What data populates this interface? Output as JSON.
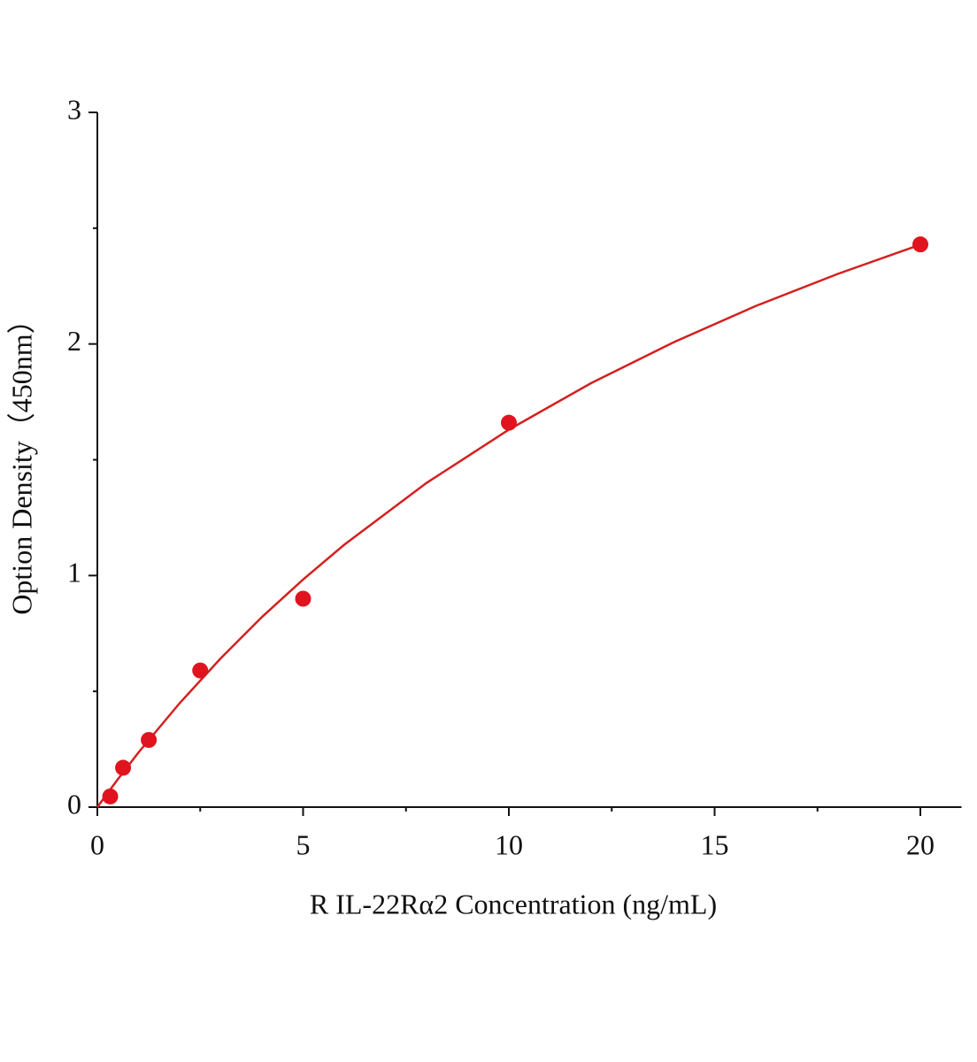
{
  "chart_data": {
    "type": "scatter",
    "x_label": "R IL-22Rα2 Concentration (ng/mL)",
    "y_label": "Option Density（450nm）",
    "xlim": [
      0,
      21
    ],
    "ylim": [
      0,
      3
    ],
    "xticks": [
      0,
      5,
      10,
      15,
      20
    ],
    "yticks": [
      0,
      1,
      2,
      3
    ],
    "x_minor_ticks": [
      2.5,
      7.5,
      12.5,
      17.5
    ],
    "y_minor_ticks": [
      0.5,
      1.5,
      2.5
    ],
    "series": [
      {
        "color": "#e0141e",
        "x": [
          0.3125,
          0.625,
          1.25,
          2.5,
          5,
          10,
          20
        ],
        "values": [
          0.046,
          0.17,
          0.29,
          0.59,
          0.9,
          1.66,
          2.43
        ]
      },
      {
        "type": "line",
        "color": "#d42020",
        "x": [
          0,
          0.5,
          1,
          2,
          3,
          4,
          5,
          6,
          8,
          10,
          12,
          14,
          16,
          18,
          20
        ],
        "values": [
          0,
          0.121,
          0.236,
          0.449,
          0.643,
          0.821,
          0.983,
          1.133,
          1.4,
          1.63,
          1.831,
          2.007,
          2.164,
          2.303,
          2.429
        ]
      }
    ]
  }
}
